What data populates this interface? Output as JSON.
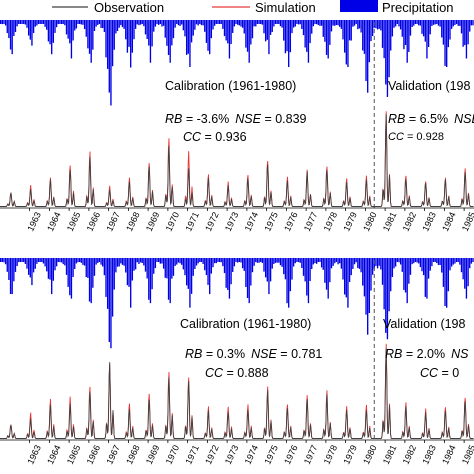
{
  "legend": {
    "observation": "Observation",
    "simulation": "Simulation",
    "precipitation": "Precipitation"
  },
  "colors": {
    "observation": "#404040",
    "simulation": "#e8393a",
    "precipitation": "#0000e6",
    "divider": "#555555"
  },
  "chart_data": [
    {
      "type": "line",
      "panel": "top",
      "x_ticks": [
        "1963",
        "1964",
        "1965",
        "1966",
        "1967",
        "1968",
        "1969",
        "1970",
        "1971",
        "1972",
        "1973",
        "1974",
        "1975",
        "1976",
        "1977",
        "1978",
        "1979",
        "1980",
        "1981",
        "1982",
        "1983",
        "1984",
        "1985"
      ],
      "x_range": [
        1962.0,
        1986.0
      ],
      "split_year": 1981,
      "calibration_label": "Calibration  (1961-1980)",
      "validation_label": "Validation  (198",
      "calibration_stats": {
        "rb_label": "RB",
        "rb_value": " = -3.6%",
        "nse_label": "NSE",
        "nse_value": " = 0.839",
        "cc_label": "CC",
        "cc_value": " = 0.936"
      },
      "validation_stats": {
        "rb_label": "RB",
        "rb_value": " = 6.5%",
        "nse_label": "NSE",
        "cc_label": "CC",
        "cc_value": " = 0.928"
      },
      "annual_peaks": {
        "years": [
          1963,
          1964,
          1965,
          1966,
          1967,
          1968,
          1969,
          1970,
          1971,
          1972,
          1973,
          1974,
          1975,
          1976,
          1977,
          1978,
          1979,
          1980,
          1981,
          1982,
          1983,
          1984,
          1985
        ],
        "observation": [
          0.18,
          0.28,
          0.4,
          0.52,
          0.18,
          0.26,
          0.44,
          0.62,
          0.4,
          0.3,
          0.22,
          0.3,
          0.46,
          0.28,
          0.36,
          0.4,
          0.26,
          0.28,
          0.95,
          0.3,
          0.26,
          0.3,
          0.38
        ],
        "simulation": [
          0.22,
          0.3,
          0.45,
          0.58,
          0.22,
          0.3,
          0.48,
          0.7,
          0.58,
          0.34,
          0.26,
          0.34,
          0.5,
          0.32,
          0.38,
          0.44,
          0.3,
          0.32,
          0.98,
          0.34,
          0.28,
          0.32,
          0.42
        ]
      },
      "precipitation_peaks": {
        "years": [
          1963,
          1964,
          1965,
          1966,
          1967,
          1968,
          1969,
          1970,
          1971,
          1972,
          1973,
          1974,
          1975,
          1976,
          1977,
          1978,
          1979,
          1980,
          1981,
          1982,
          1983,
          1984,
          1985
        ],
        "values": [
          0.3,
          0.4,
          0.45,
          0.5,
          1.0,
          0.55,
          0.5,
          0.5,
          0.55,
          0.4,
          0.45,
          0.5,
          0.4,
          0.55,
          0.5,
          0.45,
          0.55,
          0.85,
          0.9,
          0.5,
          0.45,
          0.55,
          0.45
        ]
      }
    },
    {
      "type": "line",
      "panel": "bottom",
      "x_ticks": [
        "1963",
        "1964",
        "1965",
        "1966",
        "1967",
        "1968",
        "1969",
        "1970",
        "1971",
        "1972",
        "1973",
        "1974",
        "1975",
        "1976",
        "1977",
        "1978",
        "1979",
        "1980",
        "1981",
        "1982",
        "1983",
        "1984",
        "1985"
      ],
      "x_range": [
        1962.0,
        1986.0
      ],
      "split_year": 1981,
      "calibration_label": "Calibration  (1961-1980)",
      "validation_label": "Validation  (198",
      "calibration_stats": {
        "rb_label": "RB",
        "rb_value": " = 0.3%",
        "nse_label": "NSE",
        "nse_value": " = 0.781",
        "cc_label": "CC",
        "cc_value": " = 0.888"
      },
      "validation_stats": {
        "rb_label": "RB",
        "rb_value": " = 2.0%",
        "nse_label": "NS",
        "cc_label": "CC",
        "cc_value": " = 0"
      },
      "annual_peaks": {
        "years": [
          1963,
          1964,
          1965,
          1966,
          1967,
          1968,
          1969,
          1970,
          1971,
          1972,
          1973,
          1974,
          1975,
          1976,
          1977,
          1978,
          1979,
          1980,
          1981,
          1982,
          1983,
          1984,
          1985
        ],
        "observation": [
          0.2,
          0.34,
          0.36,
          0.5,
          0.8,
          0.3,
          0.4,
          0.66,
          0.62,
          0.28,
          0.28,
          0.3,
          0.5,
          0.32,
          0.4,
          0.44,
          0.3,
          0.3,
          0.95,
          0.32,
          0.26,
          0.3,
          0.4
        ],
        "simulation": [
          0.26,
          0.4,
          0.44,
          0.56,
          0.78,
          0.36,
          0.46,
          0.72,
          0.66,
          0.32,
          0.34,
          0.36,
          0.54,
          0.36,
          0.44,
          0.48,
          0.34,
          0.36,
          1.0,
          0.36,
          0.3,
          0.34,
          0.44
        ]
      },
      "precipitation_peaks": {
        "years": [
          1963,
          1964,
          1965,
          1966,
          1967,
          1968,
          1969,
          1970,
          1971,
          1972,
          1973,
          1974,
          1975,
          1976,
          1977,
          1978,
          1979,
          1980,
          1981,
          1982,
          1983,
          1984,
          1985
        ],
        "values": [
          0.3,
          0.4,
          0.45,
          0.5,
          1.0,
          0.55,
          0.5,
          0.5,
          0.55,
          0.4,
          0.45,
          0.5,
          0.4,
          0.55,
          0.5,
          0.45,
          0.55,
          0.85,
          0.9,
          0.5,
          0.45,
          0.55,
          0.45
        ]
      }
    }
  ]
}
